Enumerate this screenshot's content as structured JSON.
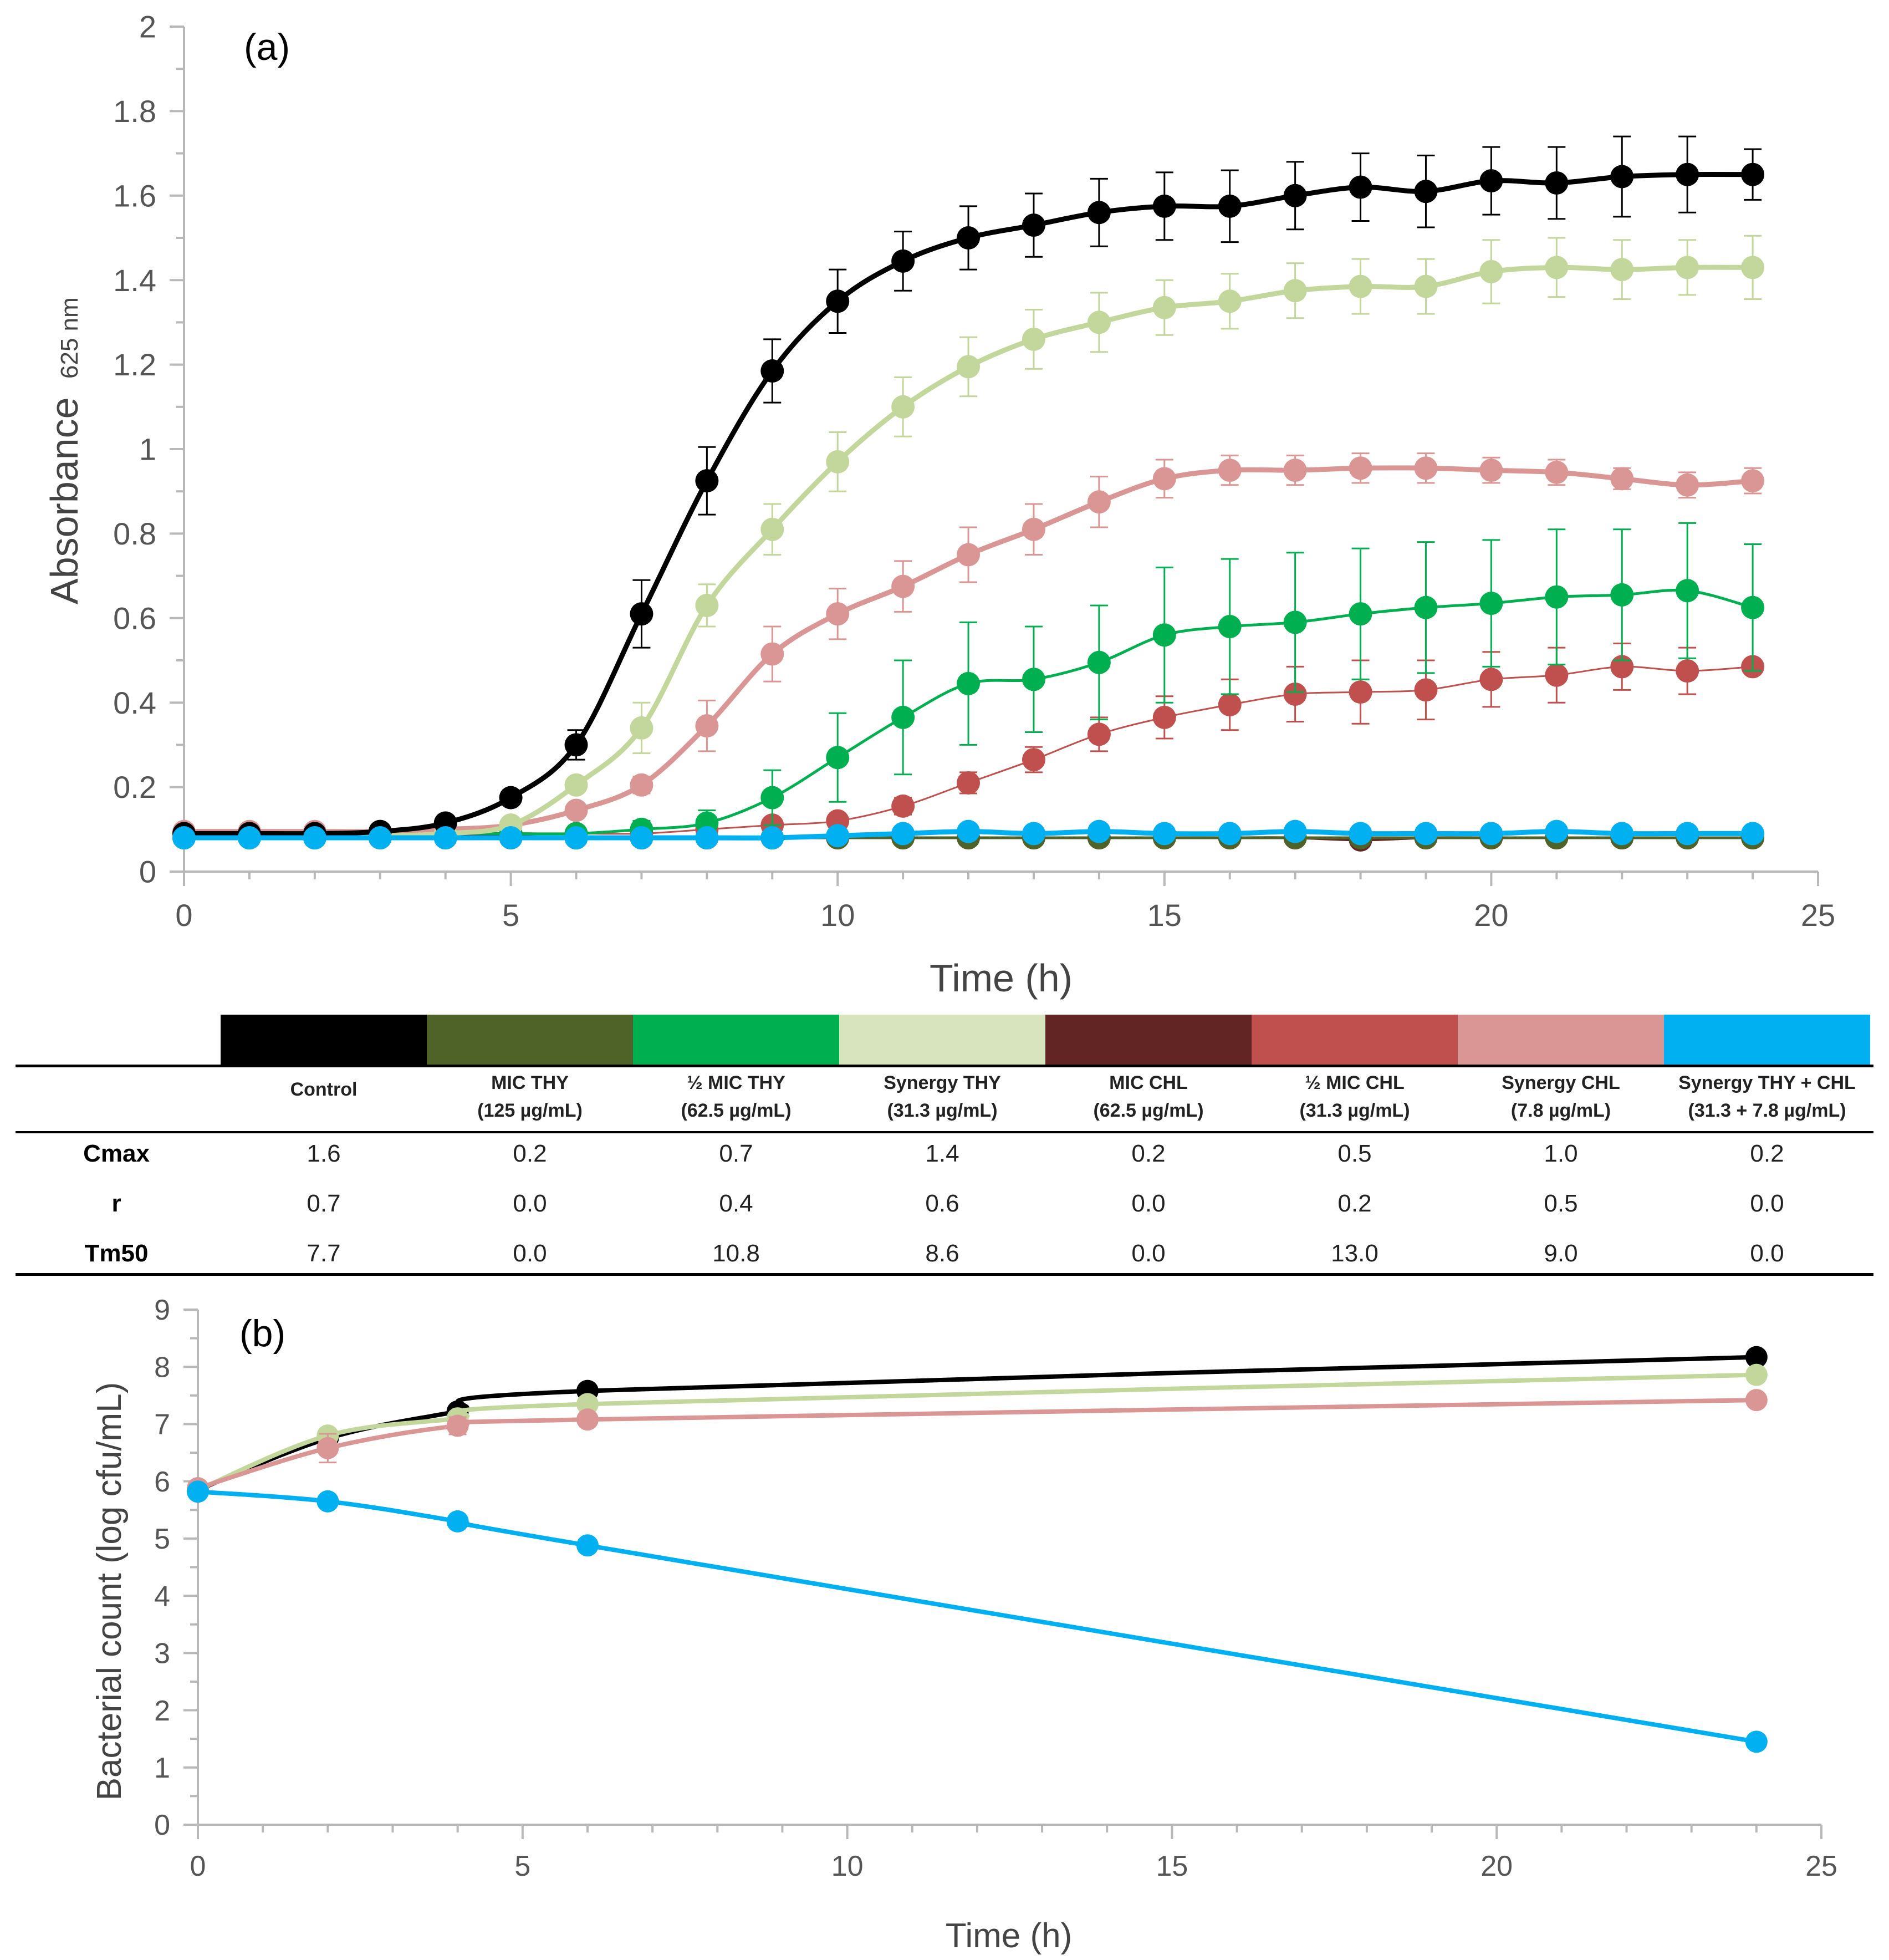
{
  "chart_data": [
    {
      "type": "line",
      "panel_label": "(a)",
      "ylabel": "Absorbance",
      "ylabel_sub": "625 nm",
      "xlabel": "Time (h)",
      "xlim": [
        0,
        25
      ],
      "ylim": [
        0,
        2
      ],
      "x_ticks": [
        "0",
        "5",
        "10",
        "15",
        "20",
        "25"
      ],
      "y_ticks": [
        "0",
        "0.2",
        "0.4",
        "0.6",
        "0.8",
        "1",
        "1.2",
        "1.4",
        "1.6",
        "1.8",
        "2"
      ],
      "x": [
        0,
        1,
        2,
        3,
        4,
        5,
        6,
        7,
        8,
        9,
        10,
        11,
        12,
        13,
        14,
        15,
        16,
        17,
        18,
        19,
        20,
        21,
        22,
        23,
        24
      ],
      "series": [
        {
          "name": "MIC CHL",
          "color": "#632523",
          "width": 5,
          "values": [
            0.09,
            0.09,
            0.09,
            0.09,
            0.09,
            0.085,
            0.08,
            0.08,
            0.08,
            0.08,
            0.08,
            0.08,
            0.08,
            0.08,
            0.08,
            0.08,
            0.08,
            0.08,
            0.075,
            0.08,
            0.08,
            0.08,
            0.08,
            0.08,
            0.08
          ],
          "errors": [
            0.01,
            0.01,
            0.01,
            0.01,
            0.01,
            0.01,
            0.01,
            0.01,
            0.01,
            0.01,
            0.01,
            0.01,
            0.01,
            0.01,
            0.01,
            0.01,
            0.01,
            0.01,
            0.01,
            0.01,
            0.01,
            0.01,
            0.01,
            0.01,
            0.01
          ]
        },
        {
          "name": "MIC THY",
          "color": "#4f6228",
          "width": 5,
          "values": [
            0.08,
            0.08,
            0.08,
            0.08,
            0.08,
            0.08,
            0.08,
            0.08,
            0.08,
            0.08,
            0.08,
            0.08,
            0.08,
            0.08,
            0.08,
            0.08,
            0.08,
            0.08,
            0.08,
            0.08,
            0.08,
            0.08,
            0.08,
            0.08,
            0.08
          ],
          "errors": [
            0.01,
            0.01,
            0.01,
            0.01,
            0.01,
            0.01,
            0.01,
            0.01,
            0.01,
            0.01,
            0.01,
            0.01,
            0.01,
            0.01,
            0.01,
            0.01,
            0.01,
            0.01,
            0.01,
            0.01,
            0.01,
            0.01,
            0.01,
            0.01,
            0.01
          ]
        },
        {
          "name": "½ MIC CHL",
          "color": "#c0504d",
          "width": 3,
          "values": [
            0.09,
            0.09,
            0.09,
            0.09,
            0.09,
            0.09,
            0.09,
            0.09,
            0.1,
            0.11,
            0.12,
            0.155,
            0.21,
            0.265,
            0.325,
            0.365,
            0.395,
            0.42,
            0.425,
            0.43,
            0.455,
            0.465,
            0.485,
            0.475,
            0.485
          ],
          "errors": [
            0.01,
            0.01,
            0.01,
            0.01,
            0.01,
            0.01,
            0.01,
            0.01,
            0.01,
            0.015,
            0.015,
            0.02,
            0.025,
            0.03,
            0.04,
            0.05,
            0.06,
            0.065,
            0.075,
            0.07,
            0.065,
            0.065,
            0.055,
            0.055,
            0.015
          ]
        },
        {
          "name": "½ MIC THY",
          "color": "#00b050",
          "width": 5,
          "values": [
            0.08,
            0.08,
            0.08,
            0.085,
            0.09,
            0.09,
            0.09,
            0.1,
            0.115,
            0.175,
            0.27,
            0.365,
            0.445,
            0.455,
            0.495,
            0.56,
            0.58,
            0.59,
            0.61,
            0.625,
            0.635,
            0.65,
            0.655,
            0.665,
            0.625
          ],
          "errors": [
            0.01,
            0.01,
            0.01,
            0.01,
            0.01,
            0.01,
            0.01,
            0.02,
            0.03,
            0.065,
            0.105,
            0.135,
            0.145,
            0.125,
            0.135,
            0.16,
            0.16,
            0.165,
            0.155,
            0.155,
            0.15,
            0.16,
            0.155,
            0.16,
            0.15
          ]
        },
        {
          "name": "Synergy CHL",
          "color": "#d99694",
          "width": 9,
          "values": [
            0.095,
            0.095,
            0.095,
            0.095,
            0.1,
            0.11,
            0.145,
            0.205,
            0.345,
            0.515,
            0.61,
            0.675,
            0.75,
            0.81,
            0.875,
            0.93,
            0.95,
            0.95,
            0.955,
            0.955,
            0.95,
            0.945,
            0.93,
            0.915,
            0.925
          ],
          "errors": [
            0.01,
            0.01,
            0.01,
            0.01,
            0.01,
            0.01,
            0.015,
            0.02,
            0.06,
            0.065,
            0.06,
            0.06,
            0.065,
            0.06,
            0.06,
            0.045,
            0.035,
            0.035,
            0.035,
            0.035,
            0.03,
            0.03,
            0.025,
            0.03,
            0.03
          ]
        },
        {
          "name": "Synergy THY",
          "color": "#c3d69b",
          "width": 9,
          "values": [
            0.085,
            0.085,
            0.085,
            0.085,
            0.09,
            0.11,
            0.205,
            0.34,
            0.63,
            0.81,
            0.97,
            1.1,
            1.195,
            1.26,
            1.3,
            1.335,
            1.35,
            1.375,
            1.385,
            1.385,
            1.42,
            1.43,
            1.425,
            1.43,
            1.43
          ],
          "errors": [
            0.01,
            0.01,
            0.01,
            0.01,
            0.01,
            0.01,
            0.015,
            0.06,
            0.05,
            0.06,
            0.07,
            0.07,
            0.07,
            0.07,
            0.07,
            0.065,
            0.065,
            0.065,
            0.065,
            0.065,
            0.075,
            0.07,
            0.07,
            0.065,
            0.075
          ]
        },
        {
          "name": "Control",
          "color": "#000000",
          "width": 9,
          "values": [
            0.09,
            0.09,
            0.09,
            0.095,
            0.115,
            0.175,
            0.3,
            0.61,
            0.925,
            1.185,
            1.35,
            1.445,
            1.5,
            1.53,
            1.56,
            1.575,
            1.575,
            1.6,
            1.62,
            1.61,
            1.635,
            1.63,
            1.645,
            1.65,
            1.65
          ],
          "errors": [
            0.01,
            0.01,
            0.01,
            0.01,
            0.01,
            0.015,
            0.035,
            0.08,
            0.08,
            0.075,
            0.075,
            0.07,
            0.075,
            0.075,
            0.08,
            0.08,
            0.085,
            0.08,
            0.08,
            0.085,
            0.08,
            0.085,
            0.095,
            0.09,
            0.06
          ]
        },
        {
          "name": "Synergy THY + CHL",
          "color": "#00b0f0",
          "width": 9,
          "values": [
            0.08,
            0.08,
            0.08,
            0.08,
            0.08,
            0.08,
            0.08,
            0.08,
            0.08,
            0.08,
            0.085,
            0.09,
            0.095,
            0.09,
            0.095,
            0.09,
            0.09,
            0.095,
            0.09,
            0.09,
            0.09,
            0.095,
            0.09,
            0.09,
            0.09
          ],
          "errors": [
            0.01,
            0.01,
            0.01,
            0.01,
            0.01,
            0.01,
            0.01,
            0.01,
            0.01,
            0.01,
            0.01,
            0.01,
            0.01,
            0.01,
            0.01,
            0.01,
            0.01,
            0.01,
            0.01,
            0.01,
            0.01,
            0.01,
            0.01,
            0.01,
            0.01
          ]
        }
      ]
    },
    {
      "type": "line",
      "panel_label": "(b)",
      "ylabel": "Bacterial count (log cfu/mL)",
      "xlabel": "Time (h)",
      "xlim": [
        0,
        25
      ],
      "ylim": [
        0,
        9
      ],
      "x_ticks": [
        "0",
        "5",
        "10",
        "15",
        "20",
        "25"
      ],
      "y_ticks": [
        "0",
        "1",
        "2",
        "3",
        "4",
        "5",
        "6",
        "7",
        "8",
        "9"
      ],
      "x": [
        0,
        2,
        4,
        6,
        24
      ],
      "series": [
        {
          "name": "Control",
          "color": "#000000",
          "values": [
            5.85,
            6.75,
            7.22,
            7.58,
            8.17
          ],
          "errors": [
            0,
            0,
            0,
            0,
            0
          ]
        },
        {
          "name": "Synergy THY",
          "color": "#c3d69b",
          "values": [
            5.85,
            6.8,
            7.1,
            7.35,
            7.86
          ],
          "errors": [
            0,
            0,
            0,
            0,
            0
          ]
        },
        {
          "name": "Synergy CHL",
          "color": "#d99694",
          "values": [
            5.88,
            6.58,
            6.97,
            7.08,
            7.42
          ],
          "errors": [
            0,
            0.25,
            0.15,
            0,
            0
          ]
        },
        {
          "name": "Synergy THY + CHL",
          "color": "#00b0f0",
          "values": [
            5.82,
            5.65,
            5.3,
            4.88,
            1.45
          ],
          "errors": [
            0,
            0,
            0,
            0,
            0
          ]
        }
      ]
    }
  ],
  "legend_table": {
    "swatches": [
      "#000000",
      "#4f6228",
      "#00b050",
      "#d7e4bd",
      "#632523",
      "#c0504d",
      "#d99694",
      "#00b0f0"
    ],
    "columns": [
      {
        "line1": "Control",
        "line2": ""
      },
      {
        "line1": "MIC THY",
        "line2": "(125 µg/mL)"
      },
      {
        "line1": "½  MIC THY",
        "line2": "(62.5 µg/mL)"
      },
      {
        "line1": "Synergy THY",
        "line2": "(31.3 µg/mL)"
      },
      {
        "line1": "MIC CHL",
        "line2": "(62.5 µg/mL)"
      },
      {
        "line1": "½ MIC CHL",
        "line2": "(31.3 µg/mL)"
      },
      {
        "line1": "Synergy CHL",
        "line2": "(7.8 µg/mL)"
      },
      {
        "line1": "Synergy THY + CHL",
        "line2": "(31.3 + 7.8 µg/mL)"
      }
    ],
    "rows": [
      {
        "label": "Cmax",
        "values": [
          "1.6",
          "0.2",
          "0.7",
          "1.4",
          "0.2",
          "0.5",
          "1.0",
          "0.2"
        ]
      },
      {
        "label": "r",
        "values": [
          "0.7",
          "0.0",
          "0.4",
          "0.6",
          "0.0",
          "0.2",
          "0.5",
          "0.0"
        ]
      },
      {
        "label": "Tm50",
        "values": [
          "7.7",
          "0.0",
          "10.8",
          "8.6",
          "0.0",
          "13.0",
          "9.0",
          "0.0"
        ]
      }
    ]
  }
}
